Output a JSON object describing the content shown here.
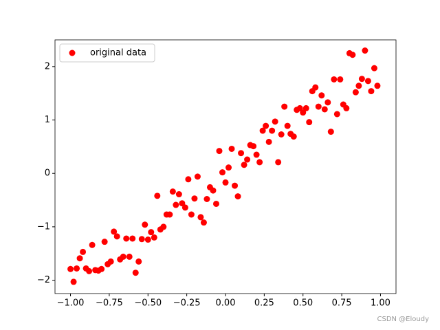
{
  "chart_data": {
    "type": "scatter",
    "x": [
      -1.0,
      -0.98,
      -0.96,
      -0.94,
      -0.92,
      -0.9,
      -0.88,
      -0.86,
      -0.84,
      -0.82,
      -0.8,
      -0.78,
      -0.76,
      -0.74,
      -0.72,
      -0.7,
      -0.68,
      -0.66,
      -0.64,
      -0.62,
      -0.6,
      -0.58,
      -0.56,
      -0.54,
      -0.52,
      -0.5,
      -0.48,
      -0.46,
      -0.44,
      -0.42,
      -0.4,
      -0.38,
      -0.36,
      -0.34,
      -0.32,
      -0.3,
      -0.28,
      -0.26,
      -0.24,
      -0.22,
      -0.2,
      -0.18,
      -0.16,
      -0.14,
      -0.12,
      -0.1,
      -0.08,
      -0.06,
      -0.04,
      -0.02,
      0.0,
      0.02,
      0.04,
      0.06,
      0.08,
      0.1,
      0.12,
      0.14,
      0.16,
      0.18,
      0.2,
      0.22,
      0.24,
      0.26,
      0.28,
      0.3,
      0.32,
      0.34,
      0.36,
      0.38,
      0.4,
      0.42,
      0.44,
      0.46,
      0.48,
      0.5,
      0.52,
      0.54,
      0.56,
      0.58,
      0.6,
      0.62,
      0.64,
      0.66,
      0.68,
      0.7,
      0.72,
      0.74,
      0.76,
      0.78,
      0.8,
      0.82,
      0.84,
      0.86,
      0.88,
      0.9,
      0.92,
      0.94,
      0.96,
      0.98
    ],
    "series": [
      {
        "name": "original data",
        "color": "#ff0000",
        "values": [
          -1.79,
          -2.03,
          -1.78,
          -1.59,
          -1.47,
          -1.78,
          -1.83,
          -1.34,
          -1.81,
          -1.82,
          -1.79,
          -1.28,
          -1.7,
          -1.65,
          -1.09,
          -1.18,
          -1.61,
          -1.56,
          -1.22,
          -1.56,
          -1.22,
          -1.86,
          -1.65,
          -1.23,
          -0.96,
          -1.24,
          -1.1,
          -1.2,
          -0.42,
          -1.05,
          -1.0,
          -0.77,
          -0.77,
          -0.34,
          -0.59,
          -0.39,
          -0.56,
          -0.64,
          -0.11,
          -0.77,
          -0.47,
          -0.06,
          -0.82,
          -0.92,
          -0.48,
          -0.26,
          -0.32,
          -0.57,
          0.42,
          0.02,
          -0.17,
          0.11,
          0.46,
          -0.23,
          -0.43,
          0.38,
          0.16,
          0.26,
          0.53,
          0.51,
          0.35,
          0.21,
          0.8,
          0.89,
          0.59,
          0.8,
          0.97,
          0.21,
          0.73,
          1.25,
          0.89,
          0.74,
          0.69,
          1.19,
          1.22,
          1.14,
          1.22,
          0.96,
          1.54,
          1.61,
          1.25,
          1.46,
          1.2,
          1.33,
          0.78,
          1.76,
          1.11,
          1.76,
          1.29,
          1.22,
          2.25,
          2.22,
          1.52,
          1.64,
          1.77,
          2.3,
          1.73,
          1.54,
          1.97,
          1.64
        ]
      }
    ],
    "xlim": [
      -1.1,
      1.1
    ],
    "ylim": [
      -2.25,
      2.5
    ],
    "xticks": [
      {
        "value": -1,
        "label": "−1.00"
      },
      {
        "value": -0.75,
        "label": "−0.75"
      },
      {
        "value": -0.5,
        "label": "−0.50"
      },
      {
        "value": -0.25,
        "label": "−0.25"
      },
      {
        "value": 0,
        "label": "0.00"
      },
      {
        "value": 0.25,
        "label": "0.25"
      },
      {
        "value": 0.5,
        "label": "0.50"
      },
      {
        "value": 0.75,
        "label": "0.75"
      },
      {
        "value": 1,
        "label": "1.00"
      }
    ],
    "yticks": [
      {
        "value": -2,
        "label": "−2"
      },
      {
        "value": -1,
        "label": "−1"
      },
      0,
      1,
      2
    ],
    "legend": "upper left",
    "watermark": "CSDN @Eloudy"
  }
}
